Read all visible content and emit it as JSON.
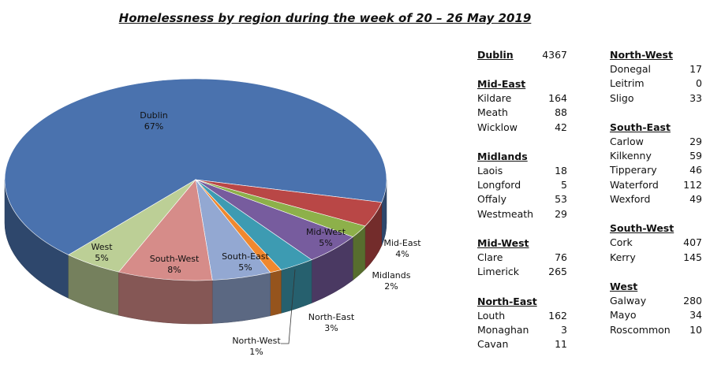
{
  "chart_data": {
    "type": "pie",
    "title": "Homelessness by region during the week of 20 – 26 May 2019",
    "slices": [
      {
        "name": "Dublin",
        "percent": "67%",
        "value": 67,
        "color": "#4a72ae"
      },
      {
        "name": "Mid-East",
        "percent": "4%",
        "value": 4,
        "color": "#b94746"
      },
      {
        "name": "Midlands",
        "percent": "2%",
        "value": 2,
        "color": "#8db04a"
      },
      {
        "name": "Mid-West",
        "percent": "5%",
        "value": 5,
        "color": "#775c9e"
      },
      {
        "name": "North-East",
        "percent": "3%",
        "value": 3,
        "color": "#3d9bb2"
      },
      {
        "name": "North-West",
        "percent": "1%",
        "value": 1,
        "color": "#f0882e"
      },
      {
        "name": "South-East",
        "percent": "5%",
        "value": 5,
        "color": "#93a8d2"
      },
      {
        "name": "South-West",
        "percent": "8%",
        "value": 8,
        "color": "#d68c89"
      },
      {
        "name": "West",
        "percent": "5%",
        "value": 5,
        "color": "#bccf96"
      }
    ]
  },
  "regions": [
    {
      "name": "Dublin",
      "total": "4367",
      "counties": []
    },
    {
      "name": "Mid-East",
      "counties": [
        {
          "name": "Kildare",
          "count": "164"
        },
        {
          "name": "Meath",
          "count": "88"
        },
        {
          "name": "Wicklow",
          "count": "42"
        }
      ]
    },
    {
      "name": "Midlands",
      "counties": [
        {
          "name": "Laois",
          "count": "18"
        },
        {
          "name": "Longford",
          "count": "5"
        },
        {
          "name": "Offaly",
          "count": "53"
        },
        {
          "name": "Westmeath",
          "count": "29"
        }
      ]
    },
    {
      "name": "Mid-West",
      "counties": [
        {
          "name": "Clare",
          "count": "76"
        },
        {
          "name": "Limerick",
          "count": "265"
        }
      ]
    },
    {
      "name": "North-East",
      "counties": [
        {
          "name": "Louth",
          "count": "162"
        },
        {
          "name": "Monaghan",
          "count": "3"
        },
        {
          "name": "Cavan",
          "count": "11"
        }
      ]
    },
    {
      "name": "North-West",
      "counties": [
        {
          "name": "Donegal",
          "count": "17"
        },
        {
          "name": "Leitrim",
          "count": "0"
        },
        {
          "name": "Sligo",
          "count": "33"
        }
      ]
    },
    {
      "name": "South-East",
      "counties": [
        {
          "name": "Carlow",
          "count": "29"
        },
        {
          "name": "Kilkenny",
          "count": "59"
        },
        {
          "name": "Tipperary",
          "count": "46"
        },
        {
          "name": "Waterford",
          "count": "112"
        },
        {
          "name": "Wexford",
          "count": "49"
        }
      ]
    },
    {
      "name": "South-West",
      "counties": [
        {
          "name": "Cork",
          "count": "407"
        },
        {
          "name": "Kerry",
          "count": "145"
        }
      ]
    },
    {
      "name": "West",
      "counties": [
        {
          "name": "Galway",
          "count": "280"
        },
        {
          "name": "Mayo",
          "count": "34"
        },
        {
          "name": "Roscommon",
          "count": "10"
        }
      ]
    }
  ]
}
